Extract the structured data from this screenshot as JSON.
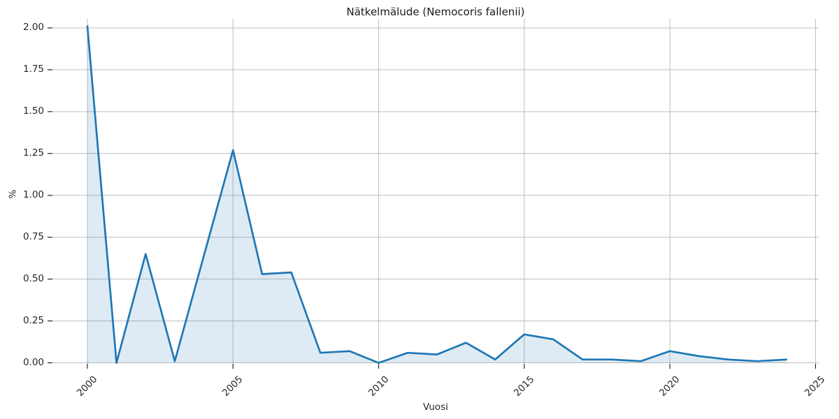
{
  "chart_data": {
    "type": "area",
    "title": "Nätkelmälude (Nemocoris fallenii)",
    "xlabel": "Vuosi",
    "ylabel": "%",
    "x": [
      2000,
      2001,
      2002,
      2003,
      2004,
      2005,
      2006,
      2007,
      2008,
      2009,
      2010,
      2011,
      2012,
      2013,
      2014,
      2015,
      2016,
      2017,
      2018,
      2019,
      2020,
      2021,
      2022,
      2023,
      2024
    ],
    "values": [
      2.01,
      0.0,
      0.65,
      0.01,
      0.64,
      1.27,
      0.53,
      0.54,
      0.06,
      0.07,
      0.0,
      0.06,
      0.05,
      0.12,
      0.02,
      0.17,
      0.14,
      0.02,
      0.02,
      0.01,
      0.07,
      0.04,
      0.02,
      0.01,
      0.02
    ],
    "xticks": [
      2000,
      2005,
      2010,
      2015,
      2020,
      2025
    ],
    "yticks": [
      0.0,
      0.25,
      0.5,
      0.75,
      1.0,
      1.25,
      1.5,
      1.75,
      2.0
    ],
    "xlim": [
      1998.8,
      2025.11
    ],
    "ylim": [
      -0.006,
      2.054
    ],
    "grid": true,
    "legend": "none",
    "line_color": "#1f77b4",
    "fill_color": "#1f77b4",
    "fill_opacity": 0.15,
    "grid_color": "#bdbdbd",
    "tick_color": "#262626",
    "text_color": "#262626"
  }
}
